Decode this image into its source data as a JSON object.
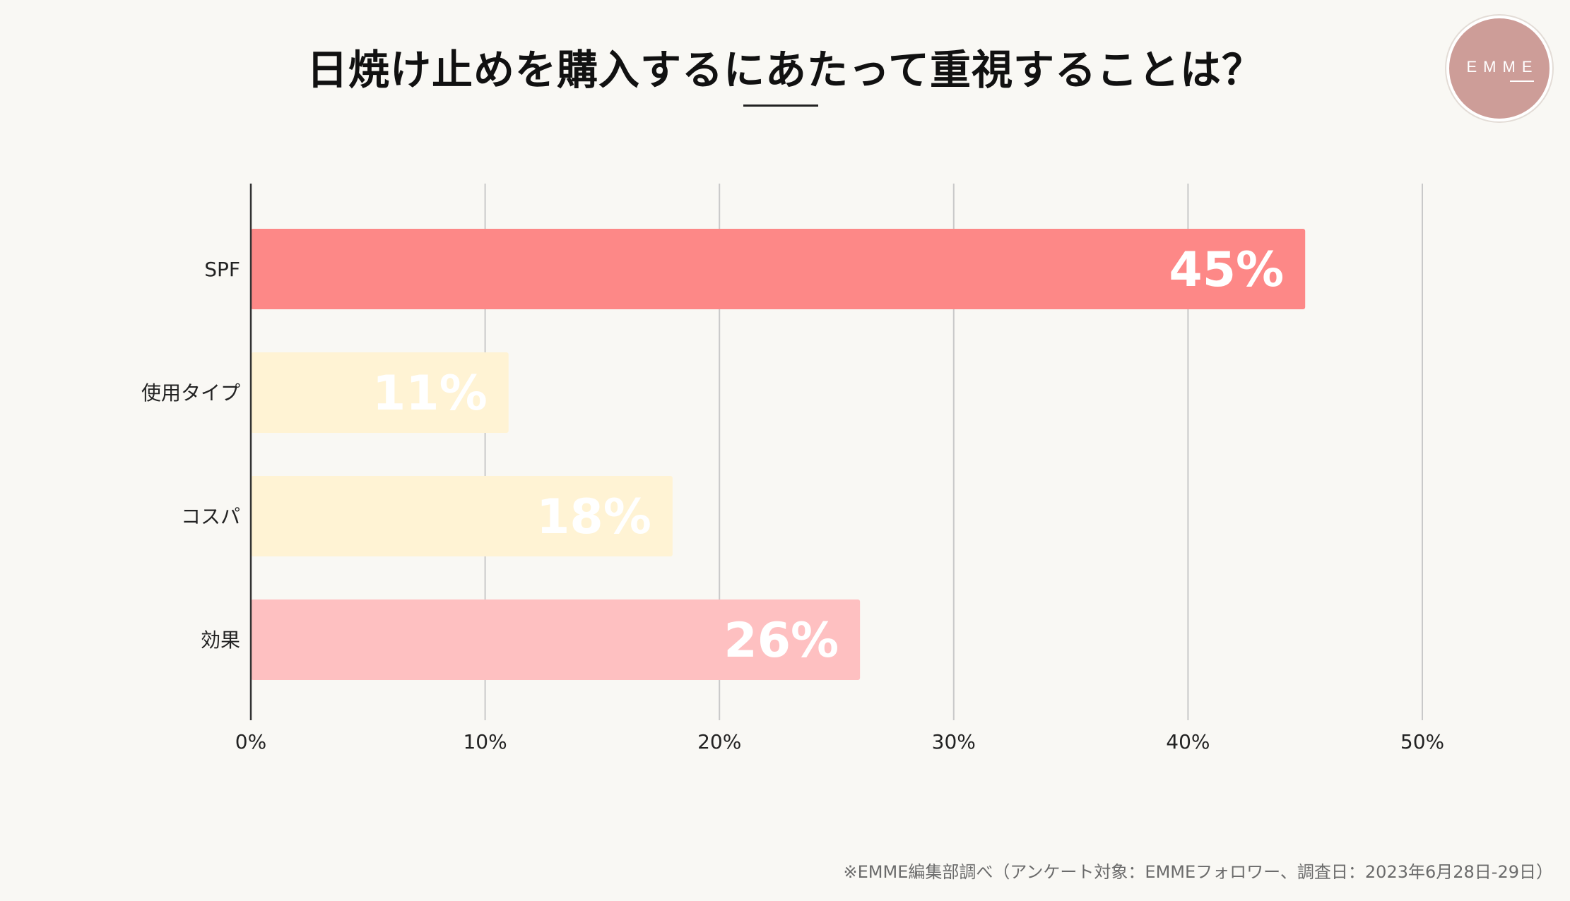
{
  "title": "日焼け止めを購入するにあたって重視することは？",
  "logo": {
    "text": "EMME"
  },
  "footnote": "※EMME編集部調べ（アンケート対象：EMMEフォロワー、調査日：2023年6月28日-29日）",
  "colors": {
    "background": "#f9f8f4",
    "gridline": "#c9c9c9",
    "axis": "#333333",
    "label_text": "#ffffff"
  },
  "chart_data": {
    "type": "bar",
    "orientation": "horizontal",
    "title": "日焼け止めを購入するにあたって重視することは？",
    "categories": [
      "SPF",
      "使用タイプ",
      "コスパ",
      "効果"
    ],
    "values": [
      45,
      11,
      18,
      26
    ],
    "data_labels": [
      "45%",
      "11%",
      "18%",
      "26%"
    ],
    "bar_colors": [
      "#fd8887",
      "#fff3d4",
      "#fff3d4",
      "#fec0c1"
    ],
    "xlim": [
      0,
      50
    ],
    "x_ticks": [
      0,
      10,
      20,
      30,
      40,
      50
    ],
    "x_tick_labels": [
      "0%",
      "10%",
      "20%",
      "30%",
      "40%",
      "50%"
    ],
    "xlabel": "",
    "ylabel": "",
    "grid": true
  }
}
